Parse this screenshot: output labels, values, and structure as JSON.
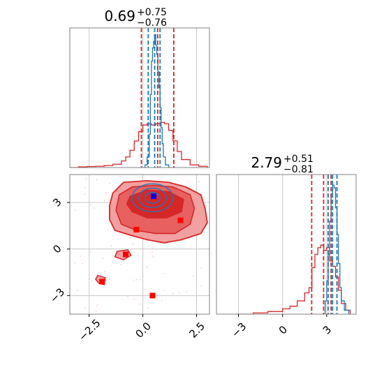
{
  "chart_data": {
    "type": "corner",
    "panels": {
      "top_left": {
        "kind": "histogram-1d",
        "parameter_index": 0,
        "title_value": "0.69",
        "title_plus": "+0.75",
        "title_minus": "−0.76",
        "xlim": [
          -3.4,
          3.1
        ],
        "x_ticks": [
          -2.5,
          0.0,
          2.5
        ],
        "red_quantiles": [
          -0.07,
          0.69,
          1.44
        ],
        "blue_quantiles": [
          0.25,
          0.55,
          0.8
        ]
      },
      "bottom_right": {
        "kind": "histogram-1d",
        "parameter_index": 1,
        "title_value": "2.79",
        "title_plus": "+0.51",
        "title_minus": "−0.81",
        "xlim": [
          -4.5,
          5.0
        ],
        "x_ticks": [
          -3,
          0,
          3
        ],
        "x_tick_labels": [
          "−3",
          "0",
          "3"
        ],
        "red_quantiles": [
          1.98,
          2.79,
          3.3
        ],
        "blue_quantiles": [
          3.1,
          3.4,
          3.7
        ]
      },
      "bottom_left": {
        "kind": "contour-2d",
        "xlim": [
          -3.4,
          3.1
        ],
        "ylim": [
          -4.2,
          4.8
        ],
        "x_ticks": [
          -2.5,
          0.0,
          2.5
        ],
        "x_tick_labels": [
          "−2.5",
          "0.0",
          "2.5"
        ],
        "y_ticks": [
          -3,
          0,
          3
        ],
        "y_tick_labels": [
          "−3",
          "0",
          "3"
        ],
        "blue_marker": [
          0.5,
          3.4
        ],
        "red_markers": [
          [
            1.75,
            1.85
          ],
          [
            -0.3,
            1.25
          ],
          [
            -0.8,
            -0.35
          ],
          [
            -1.9,
            -2.1
          ],
          [
            0.45,
            -3.0
          ]
        ]
      }
    },
    "colors": {
      "red": "#d62728",
      "blue": "#1f77b4",
      "red_level_outer": "#f2a0a0",
      "red_level_mid": "#e86060",
      "red_level_inner": "#d62728",
      "grid": "#c8c8c8",
      "axes": "#808080"
    },
    "grid": true
  },
  "series_red_top": {
    "x": [
      -3.4,
      -3.0,
      -2.6,
      -2.2,
      -1.8,
      -1.4,
      -1.0,
      -0.8,
      -0.6,
      -0.4,
      -0.2,
      0.0,
      0.2,
      0.4,
      0.6,
      0.8,
      1.0,
      1.2,
      1.4,
      1.6,
      1.8,
      2.2,
      2.6,
      3.0
    ],
    "y": [
      0.0,
      0.005,
      0.008,
      0.01,
      0.015,
      0.025,
      0.05,
      0.08,
      0.13,
      0.2,
      0.27,
      0.32,
      0.33,
      0.32,
      0.33,
      0.34,
      0.33,
      0.28,
      0.2,
      0.12,
      0.06,
      0.02,
      0.01,
      0.0
    ]
  },
  "series_blue_top": {
    "x": [
      0.0,
      0.1,
      0.2,
      0.3,
      0.35,
      0.4,
      0.45,
      0.5,
      0.55,
      0.6,
      0.65,
      0.7,
      0.75,
      0.8,
      0.85,
      0.9,
      0.95,
      1.05,
      1.2
    ],
    "y": [
      0.0,
      0.02,
      0.08,
      0.25,
      0.55,
      0.8,
      0.9,
      0.95,
      1.0,
      0.92,
      0.85,
      0.72,
      0.6,
      0.45,
      0.3,
      0.18,
      0.08,
      0.02,
      0.0
    ]
  },
  "series_red_right": {
    "x": [
      -3.2,
      -2.0,
      -1.0,
      0.0,
      0.5,
      1.0,
      1.5,
      1.8,
      2.0,
      2.2,
      2.4,
      2.6,
      2.8,
      3.0,
      3.2,
      3.4,
      3.6,
      3.8,
      4.0,
      4.3,
      4.6
    ],
    "y": [
      0.0,
      0.01,
      0.02,
      0.04,
      0.06,
      0.1,
      0.16,
      0.2,
      0.35,
      0.45,
      0.5,
      0.52,
      0.48,
      0.5,
      0.4,
      0.36,
      0.28,
      0.18,
      0.08,
      0.03,
      0.0
    ]
  },
  "series_blue_right": {
    "x": [
      2.7,
      2.9,
      3.0,
      3.1,
      3.2,
      3.3,
      3.4,
      3.5,
      3.6,
      3.7,
      3.8,
      3.9,
      4.0,
      4.2,
      4.5
    ],
    "y": [
      0.0,
      0.1,
      0.25,
      0.45,
      0.7,
      0.88,
      0.97,
      0.95,
      0.8,
      0.6,
      0.38,
      0.2,
      0.1,
      0.03,
      0.0
    ]
  }
}
